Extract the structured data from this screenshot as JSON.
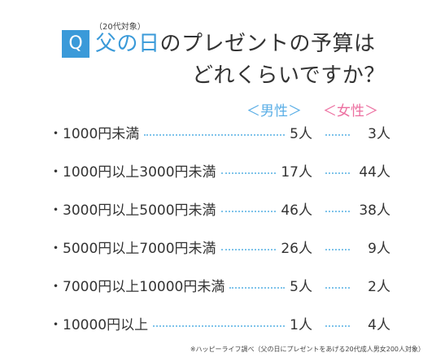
{
  "header": {
    "badge": "Q",
    "note": "（20代対象）",
    "title_highlight": "父の日",
    "title_rest": "のプレゼントの予算は",
    "title_line2": "どれくらいですか？"
  },
  "legend": {
    "male": "＜男性＞",
    "female": "＜女性＞"
  },
  "rows": [
    {
      "label": "・1000円未満",
      "male": "5人",
      "female": "3人"
    },
    {
      "label": "・1000円以上3000円未満",
      "male": "17人",
      "female": "44人"
    },
    {
      "label": "・3000円以上5000円未満",
      "male": "46人",
      "female": "38人"
    },
    {
      "label": "・5000円以上7000円未満",
      "male": "26人",
      "female": "9人"
    },
    {
      "label": "・7000円以上10000円未満",
      "male": "5人",
      "female": "2人"
    },
    {
      "label": "・10000円以上",
      "male": "1人",
      "female": "4人"
    }
  ],
  "source": "※ハッピーライフ調べ（父の日にプレゼントをあげる20代成人男女200人対象）",
  "colors": {
    "accent_blue": "#3a9ad9",
    "male": "#5aaee6",
    "female": "#ec6fa0",
    "dots": "#7ec3ea"
  },
  "chart_data": {
    "type": "table",
    "title": "父の日のプレゼントの予算はどれくらいですか？",
    "subtitle": "（20代対象）",
    "categories": [
      "1000円未満",
      "1000円以上3000円未満",
      "3000円以上5000円未満",
      "5000円以上7000円未満",
      "7000円以上10000円未満",
      "10000円以上"
    ],
    "series": [
      {
        "name": "男性",
        "values": [
          5,
          17,
          46,
          26,
          5,
          1
        ]
      },
      {
        "name": "女性",
        "values": [
          3,
          44,
          38,
          9,
          2,
          4
        ]
      }
    ],
    "unit": "人"
  }
}
